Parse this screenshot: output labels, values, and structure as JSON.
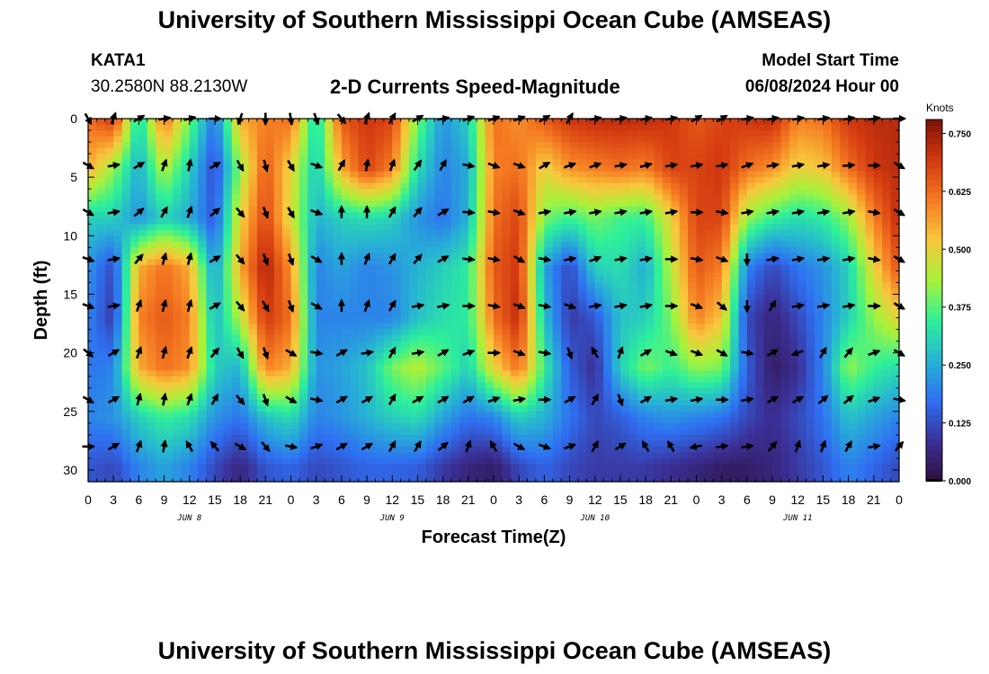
{
  "header": {
    "title": "University of Southern Mississippi Ocean Cube (AMSEAS)",
    "station": "KATA1",
    "coords": "30.2580N  88.2130W",
    "subtitle": "2-D Currents Speed-Magnitude",
    "start_label": "Model Start Time",
    "start_value": "06/08/2024 Hour 00"
  },
  "footer": {
    "title": "University of Southern Mississippi Ocean Cube (AMSEAS)"
  },
  "chart_data": {
    "type": "heatmap",
    "title": "2-D Currents Speed-Magnitude",
    "xlabel": "Forecast Time(Z)",
    "ylabel": "Depth (ft)",
    "x_unit": "hours since 06/08/2024 00Z",
    "xlim": [
      0,
      96
    ],
    "ylim": [
      0,
      31
    ],
    "x_ticks": [
      0,
      3,
      6,
      9,
      12,
      15,
      18,
      21,
      24,
      27,
      30,
      33,
      36,
      39,
      42,
      45,
      48,
      51,
      54,
      57,
      60,
      63,
      66,
      69,
      72,
      75,
      78,
      81,
      84,
      87,
      90,
      93,
      96
    ],
    "x_tick_labels": [
      "0",
      "3",
      "6",
      "9",
      "12",
      "15",
      "18",
      "21",
      "0",
      "3",
      "6",
      "9",
      "12",
      "15",
      "18",
      "21",
      "0",
      "3",
      "6",
      "9",
      "12",
      "15",
      "18",
      "21",
      "0",
      "3",
      "6",
      "9",
      "12",
      "15",
      "18",
      "21",
      "0"
    ],
    "y_ticks": [
      0,
      5,
      10,
      15,
      20,
      25,
      30
    ],
    "y_tick_labels": [
      "0",
      "5",
      "10",
      "15",
      "20",
      "25",
      "30"
    ],
    "day_labels": [
      {
        "x": 12,
        "text": "JUN 8"
      },
      {
        "x": 36,
        "text": "JUN 9"
      },
      {
        "x": 60,
        "text": "JUN 10"
      },
      {
        "x": 84,
        "text": "JUN 11"
      }
    ],
    "colorbar": {
      "unit": "Knots",
      "min": 0,
      "max": 0.78,
      "ticks": [
        0.0,
        0.125,
        0.25,
        0.375,
        0.5,
        0.625,
        0.75
      ],
      "tick_labels": [
        "0.000",
        "0.125",
        "0.250",
        "0.375",
        "0.500",
        "0.625",
        "0.750"
      ],
      "colors": [
        "#2c0f3c",
        "#3b3096",
        "#2f6ff2",
        "#27b3d4",
        "#2df09a",
        "#a8f23a",
        "#f8c83c",
        "#f57a22",
        "#d33a10",
        "#7d1208"
      ]
    },
    "speed_grid": {
      "depths": [
        0,
        4.25,
        8.5,
        12.75,
        17,
        21.25,
        25.5,
        29.75
      ],
      "times": [
        0,
        3,
        6,
        9,
        12,
        15,
        18,
        21,
        24,
        27,
        30,
        33,
        36,
        39,
        42,
        45,
        48,
        51,
        54,
        57,
        60,
        63,
        66,
        69,
        72,
        75,
        78,
        81,
        84,
        87,
        90,
        93,
        96
      ],
      "values": [
        [
          0.62,
          0.7,
          0.3,
          0.62,
          0.4,
          0.18,
          0.55,
          0.6,
          0.62,
          0.3,
          0.65,
          0.7,
          0.68,
          0.4,
          0.22,
          0.3,
          0.62,
          0.58,
          0.65,
          0.7,
          0.72,
          0.72,
          0.72,
          0.7,
          0.65,
          0.68,
          0.7,
          0.72,
          0.6,
          0.62,
          0.7,
          0.72,
          0.72
        ],
        [
          0.55,
          0.42,
          0.25,
          0.45,
          0.3,
          0.12,
          0.42,
          0.65,
          0.5,
          0.28,
          0.55,
          0.68,
          0.6,
          0.32,
          0.2,
          0.25,
          0.6,
          0.62,
          0.5,
          0.58,
          0.6,
          0.62,
          0.6,
          0.68,
          0.68,
          0.7,
          0.62,
          0.58,
          0.5,
          0.52,
          0.62,
          0.7,
          0.72
        ],
        [
          0.3,
          0.3,
          0.22,
          0.3,
          0.25,
          0.14,
          0.5,
          0.68,
          0.48,
          0.26,
          0.3,
          0.32,
          0.3,
          0.22,
          0.18,
          0.26,
          0.62,
          0.68,
          0.4,
          0.35,
          0.4,
          0.36,
          0.35,
          0.5,
          0.68,
          0.68,
          0.42,
          0.35,
          0.32,
          0.34,
          0.42,
          0.6,
          0.72
        ],
        [
          0.22,
          0.12,
          0.55,
          0.62,
          0.55,
          0.22,
          0.55,
          0.74,
          0.58,
          0.2,
          0.24,
          0.2,
          0.22,
          0.26,
          0.3,
          0.34,
          0.65,
          0.7,
          0.24,
          0.12,
          0.3,
          0.32,
          0.25,
          0.45,
          0.65,
          0.6,
          0.2,
          0.12,
          0.18,
          0.22,
          0.3,
          0.5,
          0.66
        ],
        [
          0.2,
          0.1,
          0.6,
          0.65,
          0.6,
          0.26,
          0.45,
          0.7,
          0.62,
          0.2,
          0.2,
          0.2,
          0.2,
          0.28,
          0.32,
          0.34,
          0.62,
          0.72,
          0.28,
          0.1,
          0.14,
          0.28,
          0.3,
          0.4,
          0.6,
          0.52,
          0.12,
          0.06,
          0.12,
          0.2,
          0.3,
          0.42,
          0.5
        ],
        [
          0.18,
          0.2,
          0.55,
          0.62,
          0.58,
          0.3,
          0.26,
          0.6,
          0.55,
          0.22,
          0.24,
          0.28,
          0.4,
          0.45,
          0.38,
          0.3,
          0.5,
          0.62,
          0.35,
          0.15,
          0.08,
          0.3,
          0.4,
          0.35,
          0.42,
          0.4,
          0.15,
          0.04,
          0.08,
          0.2,
          0.42,
          0.35,
          0.32
        ],
        [
          0.2,
          0.22,
          0.3,
          0.35,
          0.32,
          0.22,
          0.18,
          0.28,
          0.32,
          0.2,
          0.22,
          0.26,
          0.3,
          0.32,
          0.24,
          0.18,
          0.2,
          0.3,
          0.26,
          0.18,
          0.12,
          0.15,
          0.2,
          0.22,
          0.2,
          0.18,
          0.12,
          0.08,
          0.12,
          0.18,
          0.28,
          0.24,
          0.2
        ],
        [
          0.14,
          0.12,
          0.2,
          0.24,
          0.2,
          0.12,
          0.06,
          0.14,
          0.16,
          0.12,
          0.14,
          0.16,
          0.16,
          0.15,
          0.1,
          0.06,
          0.04,
          0.12,
          0.16,
          0.12,
          0.1,
          0.1,
          0.1,
          0.08,
          0.06,
          0.04,
          0.04,
          0.06,
          0.1,
          0.14,
          0.2,
          0.16,
          0.12
        ]
      ]
    },
    "vectors": {
      "depths": [
        0,
        4,
        8,
        12,
        16,
        20,
        24,
        28
      ],
      "times": [
        0,
        3,
        6,
        9,
        12,
        15,
        18,
        21,
        24,
        27,
        30,
        33,
        36,
        39,
        42,
        45,
        48,
        51,
        54,
        57,
        60,
        63,
        66,
        69,
        72,
        75,
        78,
        81,
        84,
        87,
        90,
        93,
        96
      ],
      "direction_deg": [
        [
          150,
          20,
          60,
          80,
          75,
          90,
          200,
          180,
          170,
          160,
          140,
          20,
          30,
          60,
          80,
          70,
          70,
          70,
          60,
          30,
          80,
          80,
          80,
          80,
          60,
          60,
          80,
          80,
          80,
          80,
          80,
          80,
          90
        ],
        [
          120,
          80,
          60,
          20,
          10,
          60,
          150,
          165,
          150,
          110,
          30,
          10,
          20,
          35,
          30,
          100,
          110,
          110,
          60,
          70,
          70,
          80,
          75,
          80,
          80,
          80,
          70,
          80,
          80,
          80,
          85,
          90,
          120
        ],
        [
          120,
          80,
          50,
          30,
          20,
          50,
          140,
          160,
          150,
          110,
          0,
          0,
          30,
          40,
          60,
          95,
          100,
          110,
          80,
          80,
          80,
          80,
          80,
          80,
          90,
          100,
          80,
          80,
          80,
          80,
          80,
          100,
          120
        ],
        [
          110,
          80,
          40,
          15,
          15,
          60,
          140,
          160,
          160,
          120,
          0,
          20,
          30,
          40,
          60,
          95,
          100,
          120,
          100,
          80,
          70,
          80,
          80,
          90,
          100,
          110,
          180,
          80,
          80,
          80,
          80,
          100,
          120
        ],
        [
          110,
          80,
          20,
          15,
          15,
          60,
          140,
          150,
          160,
          120,
          0,
          20,
          30,
          80,
          80,
          90,
          100,
          110,
          100,
          110,
          80,
          80,
          80,
          90,
          110,
          130,
          180,
          30,
          80,
          80,
          80,
          90,
          120
        ],
        [
          130,
          60,
          20,
          15,
          20,
          40,
          150,
          160,
          120,
          100,
          60,
          80,
          30,
          80,
          60,
          70,
          90,
          110,
          100,
          160,
          330,
          20,
          60,
          110,
          110,
          120,
          100,
          60,
          250,
          30,
          40,
          70,
          120
        ],
        [
          120,
          60,
          15,
          10,
          20,
          30,
          140,
          160,
          120,
          100,
          60,
          60,
          30,
          60,
          60,
          60,
          70,
          80,
          90,
          60,
          30,
          160,
          60,
          80,
          80,
          90,
          80,
          60,
          60,
          50,
          50,
          70,
          100
        ],
        [
          90,
          60,
          20,
          10,
          330,
          320,
          120,
          140,
          100,
          70,
          60,
          60,
          30,
          30,
          50,
          20,
          330,
          120,
          110,
          70,
          30,
          60,
          330,
          330,
          260,
          80,
          80,
          40,
          20,
          20,
          30,
          80,
          40
        ]
      ]
    }
  }
}
